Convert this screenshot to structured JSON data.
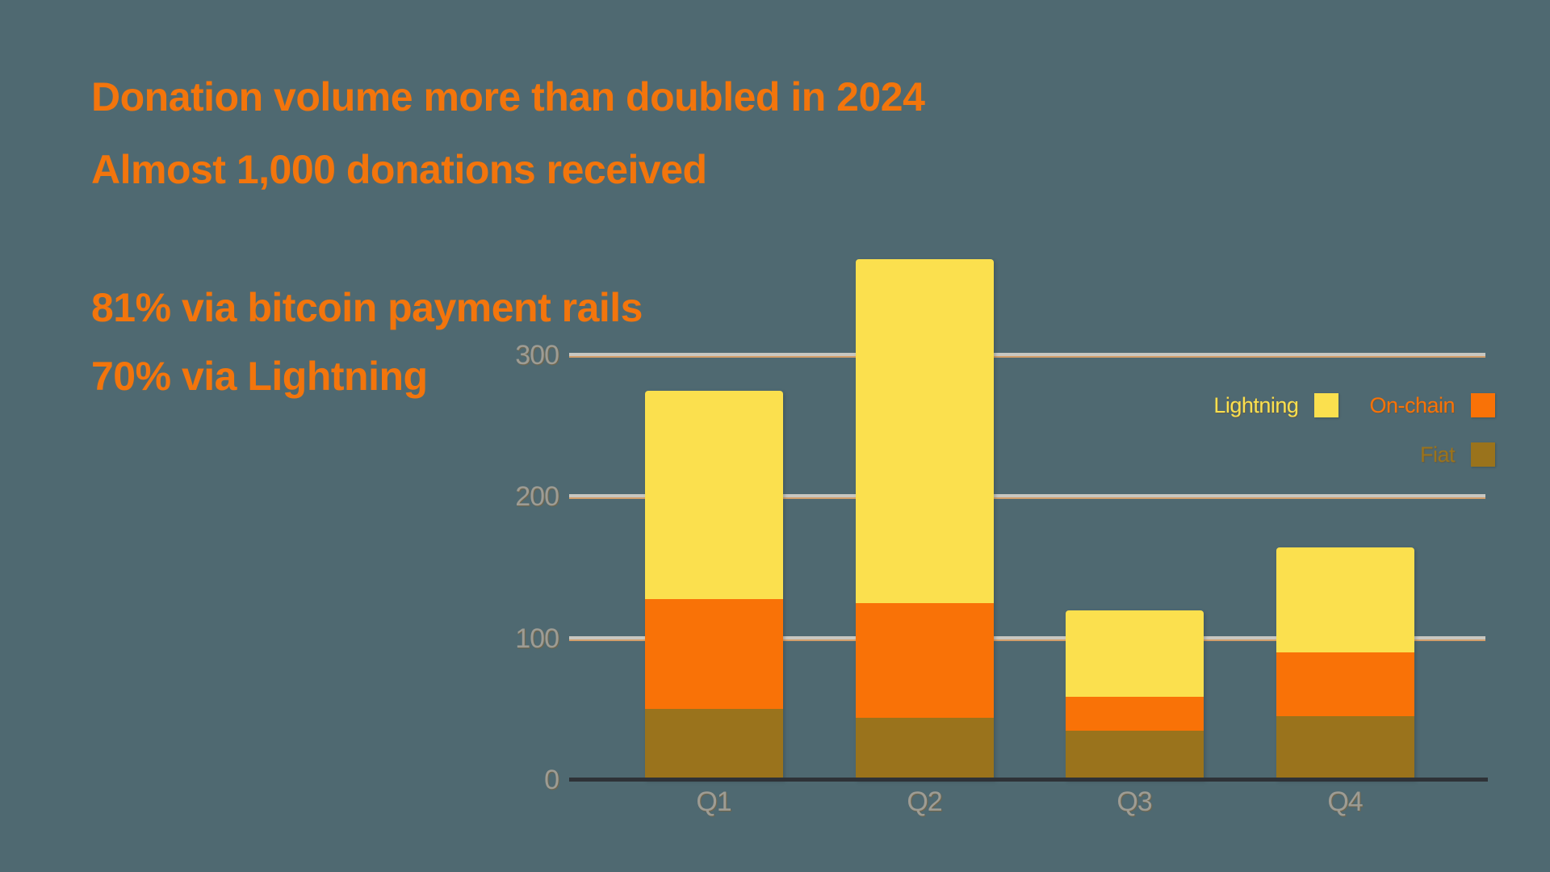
{
  "background_color": "#4F6971",
  "headline_color": "#F3750C",
  "headlines": {
    "line1": "Donation volume more than doubled in 2024",
    "line2": "Almost 1,000 donations received",
    "line3": "81% via bitcoin payment rails",
    "line4": "70% via Lightning"
  },
  "chart_data": {
    "type": "bar",
    "stacked": true,
    "categories": [
      "Q1",
      "Q2",
      "Q3",
      "Q4"
    ],
    "series": [
      {
        "name": "Fiat",
        "color": "#9A731C",
        "values": [
          50,
          44,
          35,
          45
        ]
      },
      {
        "name": "On-chain",
        "color": "#F97207",
        "values": [
          78,
          81,
          24,
          45
        ]
      },
      {
        "name": "Lightning",
        "color": "#FBE04E",
        "values": [
          147,
          243,
          61,
          74
        ]
      }
    ],
    "stack_totals": [
      275,
      368,
      120,
      164
    ],
    "yticks": [
      0,
      100,
      200,
      300
    ],
    "ylim": [
      0,
      375
    ],
    "grid": true,
    "legend_position": "right-inside",
    "axis_label_color": "#9D9C94",
    "gridline_color": "#C8C7C1",
    "axis_line_color": "#2E3237"
  },
  "legend": {
    "rows": [
      [
        {
          "label": "Lightning",
          "color": "#FBE04E"
        },
        {
          "label": "On-chain",
          "color": "#F97207"
        }
      ],
      [
        {
          "label": "Fiat",
          "color": "#9A731C"
        }
      ]
    ]
  }
}
